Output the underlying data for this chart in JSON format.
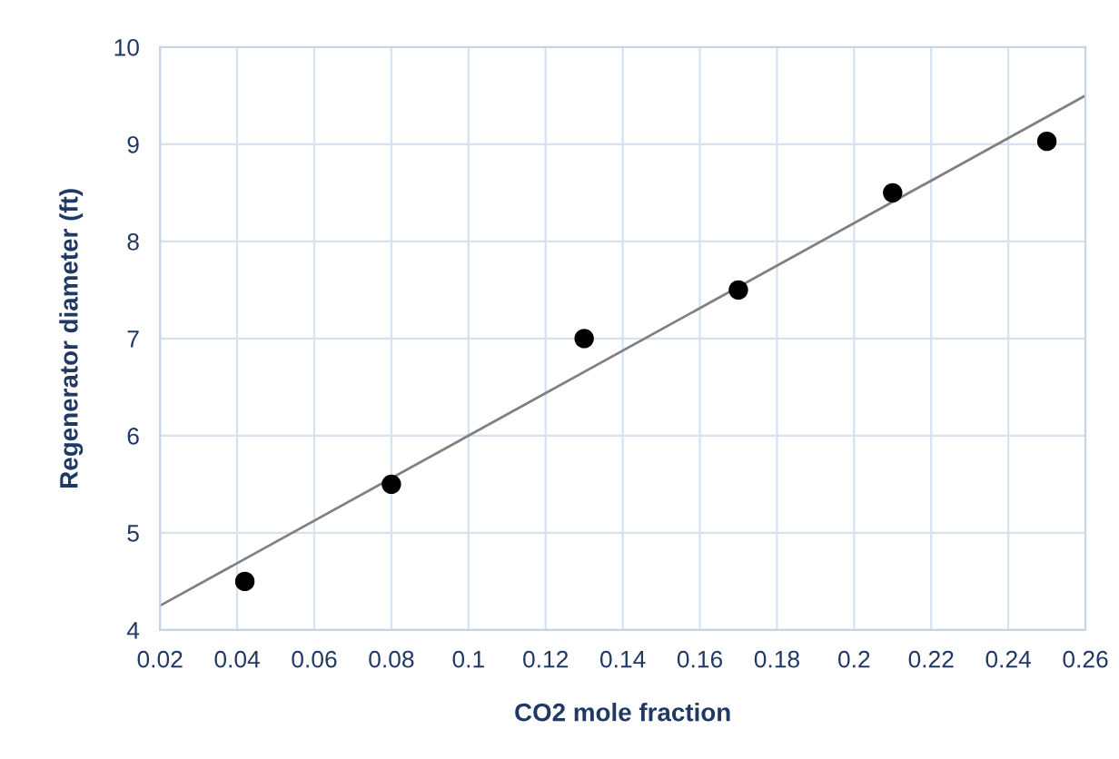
{
  "chart_data": {
    "type": "scatter",
    "xlabel": "CO2 mole fraction",
    "ylabel": "Regenerator diameter (ft)",
    "series": [
      {
        "color": "#000000",
        "marker": "circle",
        "x": [
          0.042,
          0.08,
          0.13,
          0.17,
          0.21,
          0.25
        ],
        "values": [
          4.5,
          5.5,
          7.0,
          7.5,
          8.5,
          9.03
        ]
      },
      {
        "type": "line",
        "color": "#808080",
        "marker": "none",
        "line_style": "solid",
        "x": [
          0.02,
          0.26
        ],
        "values": [
          4.25,
          9.5
        ]
      }
    ],
    "xlim": [
      0.02,
      0.26
    ],
    "ylim": [
      4,
      10
    ],
    "xticks": [
      0.02,
      0.04,
      0.06,
      0.08,
      0.1,
      0.12,
      0.14,
      0.16,
      0.18,
      0.2,
      0.22,
      0.24,
      0.26
    ],
    "yticks": [
      4,
      5,
      6,
      7,
      8,
      9,
      10
    ],
    "grid": true,
    "legend": false
  }
}
